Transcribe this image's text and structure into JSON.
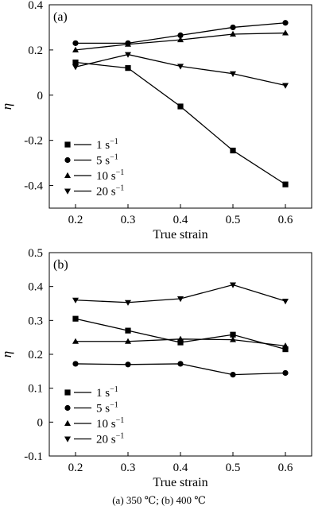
{
  "caption": "(a)  350  ℃;  (b)  400  ℃",
  "chart_data": [
    {
      "type": "line",
      "panel_label": "(a)",
      "xlabel": "True strain",
      "ylabel": "η",
      "x": [
        0.2,
        0.3,
        0.4,
        0.5,
        0.6
      ],
      "xticks": [
        "0.2",
        "0.3",
        "0.4",
        "0.5",
        "0.6"
      ],
      "xlim": [
        0.15,
        0.65
      ],
      "ylim": [
        -0.5,
        0.4
      ],
      "yticks": [
        -0.4,
        -0.2,
        0,
        0.2,
        0.4
      ],
      "ytick_labels": [
        "-0.4",
        "-0.2",
        "0",
        "0.2",
        "0.4"
      ],
      "legend_position": "lower-left",
      "series": [
        {
          "name": "1 s",
          "sup": "−1",
          "marker": "square",
          "values": [
            0.145,
            0.12,
            -0.05,
            -0.245,
            -0.395
          ]
        },
        {
          "name": "5 s",
          "sup": "−1",
          "marker": "circle",
          "values": [
            0.23,
            0.23,
            0.265,
            0.3,
            0.32
          ]
        },
        {
          "name": "10 s",
          "sup": "−1",
          "marker": "triangle-up",
          "values": [
            0.2,
            0.225,
            0.245,
            0.27,
            0.275
          ]
        },
        {
          "name": "20 s",
          "sup": "−1",
          "marker": "triangle-down",
          "values": [
            0.125,
            0.18,
            0.128,
            0.095,
            0.043
          ]
        }
      ]
    },
    {
      "type": "line",
      "panel_label": "(b)",
      "xlabel": "True strain",
      "ylabel": "η",
      "x": [
        0.2,
        0.3,
        0.4,
        0.5,
        0.6
      ],
      "xticks": [
        "0.2",
        "0.3",
        "0.4",
        "0.5",
        "0.6"
      ],
      "xlim": [
        0.15,
        0.65
      ],
      "ylim": [
        -0.1,
        0.5
      ],
      "yticks": [
        -0.1,
        0,
        0.1,
        0.2,
        0.3,
        0.4,
        0.5
      ],
      "ytick_labels": [
        "-0.1",
        "0",
        "0.1",
        "0.2",
        "0.3",
        "0.4",
        "0.5"
      ],
      "legend_position": "lower-left",
      "series": [
        {
          "name": "1 s",
          "sup": "−1",
          "marker": "square",
          "values": [
            0.305,
            0.27,
            0.235,
            0.258,
            0.215
          ]
        },
        {
          "name": "5 s",
          "sup": "−1",
          "marker": "circle",
          "values": [
            0.172,
            0.17,
            0.172,
            0.14,
            0.145
          ]
        },
        {
          "name": "10 s",
          "sup": "−1",
          "marker": "triangle-up",
          "values": [
            0.238,
            0.238,
            0.245,
            0.243,
            0.225
          ]
        },
        {
          "name": "20 s",
          "sup": "−1",
          "marker": "triangle-down",
          "values": [
            0.36,
            0.353,
            0.364,
            0.405,
            0.357
          ]
        }
      ]
    }
  ]
}
